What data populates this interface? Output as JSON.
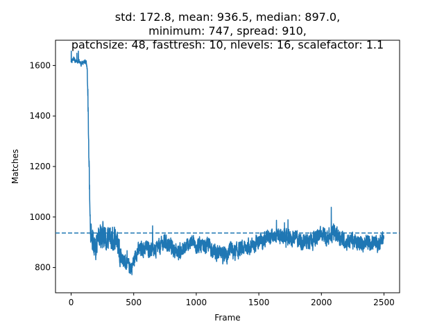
{
  "chart_data": {
    "type": "line",
    "title_lines": [
      "std: 172.8, mean: 936.5, median: 897.0,",
      "minimum: 747, spread: 910,",
      "patchsize: 48, fasttresh: 10, nlevels: 16, scalefactor: 1.1"
    ],
    "xlabel": "Frame",
    "ylabel": "Matches",
    "xlim": [
      -125,
      2625
    ],
    "ylim": [
      700,
      1700
    ],
    "xticks": [
      0,
      500,
      1000,
      1500,
      2000,
      2500
    ],
    "yticks": [
      800,
      1000,
      1200,
      1400,
      1600
    ],
    "mean_line": 936.5,
    "line_color": "#1f77b4",
    "series_anchors": [
      [
        0,
        1610
      ],
      [
        20,
        1630
      ],
      [
        40,
        1615
      ],
      [
        60,
        1620
      ],
      [
        80,
        1605
      ],
      [
        100,
        1615
      ],
      [
        120,
        1610
      ],
      [
        130,
        1580
      ],
      [
        135,
        1450
      ],
      [
        140,
        1300
      ],
      [
        145,
        1150
      ],
      [
        150,
        1000
      ],
      [
        155,
        960
      ],
      [
        160,
        930
      ],
      [
        180,
        900
      ],
      [
        200,
        880
      ],
      [
        220,
        920
      ],
      [
        250,
        940
      ],
      [
        280,
        900
      ],
      [
        300,
        920
      ],
      [
        330,
        910
      ],
      [
        360,
        920
      ],
      [
        380,
        880
      ],
      [
        400,
        850
      ],
      [
        420,
        830
      ],
      [
        450,
        810
      ],
      [
        480,
        800
      ],
      [
        500,
        820
      ],
      [
        520,
        860
      ],
      [
        550,
        870
      ],
      [
        600,
        880
      ],
      [
        650,
        870
      ],
      [
        700,
        880
      ],
      [
        750,
        900
      ],
      [
        800,
        880
      ],
      [
        850,
        860
      ],
      [
        900,
        870
      ],
      [
        950,
        900
      ],
      [
        1000,
        890
      ],
      [
        1050,
        880
      ],
      [
        1100,
        890
      ],
      [
        1150,
        860
      ],
      [
        1200,
        850
      ],
      [
        1250,
        840
      ],
      [
        1270,
        880
      ],
      [
        1300,
        860
      ],
      [
        1350,
        870
      ],
      [
        1400,
        880
      ],
      [
        1450,
        890
      ],
      [
        1500,
        900
      ],
      [
        1550,
        910
      ],
      [
        1600,
        920
      ],
      [
        1650,
        930
      ],
      [
        1700,
        920
      ],
      [
        1750,
        915
      ],
      [
        1800,
        920
      ],
      [
        1850,
        900
      ],
      [
        1900,
        910
      ],
      [
        1950,
        920
      ],
      [
        2000,
        930
      ],
      [
        2050,
        920
      ],
      [
        2100,
        940
      ],
      [
        2150,
        920
      ],
      [
        2200,
        900
      ],
      [
        2250,
        910
      ],
      [
        2300,
        890
      ],
      [
        2350,
        900
      ],
      [
        2400,
        900
      ],
      [
        2450,
        890
      ],
      [
        2490,
        920
      ]
    ],
    "frame_count": 2500,
    "noise_amplitude": 45,
    "series_min": 747,
    "series_max": 1657
  }
}
